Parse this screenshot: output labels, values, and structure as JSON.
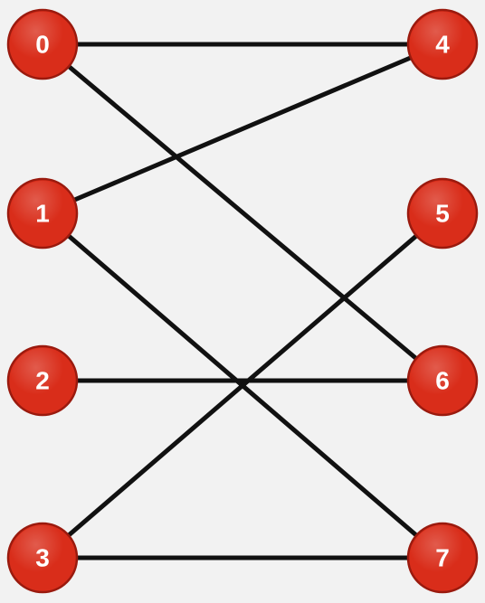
{
  "graph": {
    "node_color": "#d92d1a",
    "edge_color": "#111111",
    "background_color": "#f2f2f2",
    "nodes": [
      {
        "id": "0",
        "label": "0"
      },
      {
        "id": "1",
        "label": "1"
      },
      {
        "id": "2",
        "label": "2"
      },
      {
        "id": "3",
        "label": "3"
      },
      {
        "id": "4",
        "label": "4"
      },
      {
        "id": "5",
        "label": "5"
      },
      {
        "id": "6",
        "label": "6"
      },
      {
        "id": "7",
        "label": "7"
      }
    ],
    "edges": [
      [
        "0",
        "4"
      ],
      [
        "0",
        "6"
      ],
      [
        "1",
        "4"
      ],
      [
        "1",
        "7"
      ],
      [
        "2",
        "6"
      ],
      [
        "3",
        "5"
      ],
      [
        "3",
        "7"
      ]
    ]
  }
}
